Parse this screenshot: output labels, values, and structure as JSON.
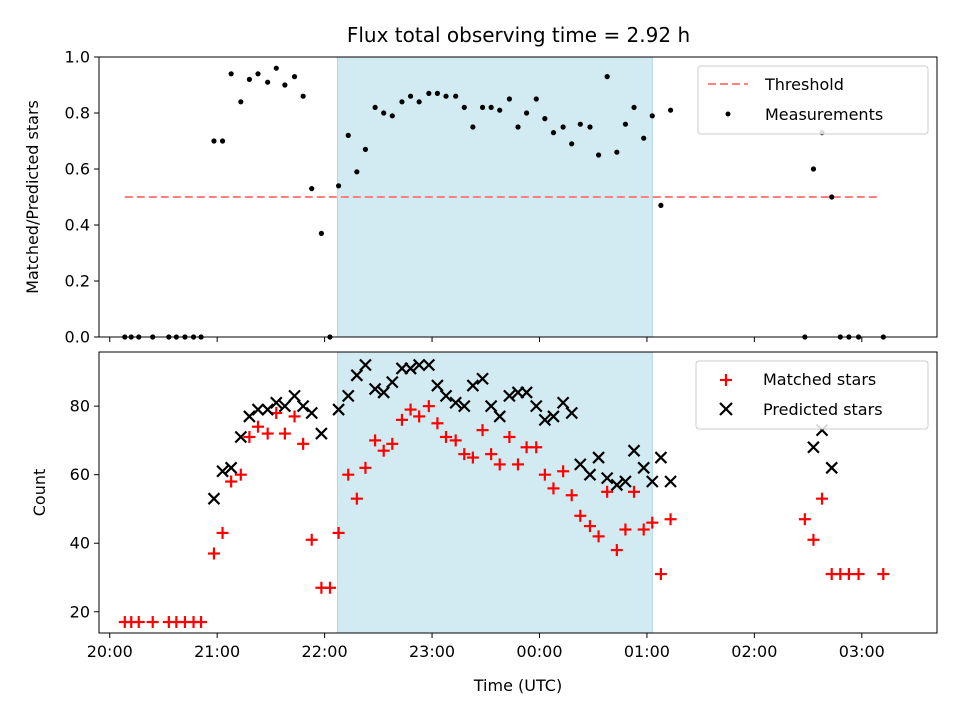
{
  "title": "Flux total observing time = 2.92 h",
  "colors": {
    "shade": "#add8e6",
    "threshold": "#ff8080",
    "measurement": "#000000",
    "matched": "#ff0000",
    "predicted": "#000000"
  },
  "chart_data": [
    {
      "type": "scatter",
      "panel": "top",
      "ylabel": "Matched/Predicted stars",
      "xlabel": "",
      "x_unit": "hours since 20:00 UTC on the shared time axis",
      "xlim": [
        -0.1,
        7.7
      ],
      "ylim": [
        0.0,
        1.0
      ],
      "yticks": [
        0.0,
        0.2,
        0.4,
        0.6,
        0.8,
        1.0
      ],
      "ytick_labels": [
        "0.0",
        "0.2",
        "0.4",
        "0.6",
        "0.8",
        "1.0"
      ],
      "grid": false,
      "legend": "top-right",
      "shaded_span": [
        2.12,
        5.05
      ],
      "threshold": {
        "name": "Threshold",
        "y": 0.5,
        "x_range": [
          0.14,
          7.17
        ]
      },
      "series": [
        {
          "name": "Measurements",
          "points": [
            [
              0.14,
              0.0
            ],
            [
              0.2,
              0.0
            ],
            [
              0.27,
              0.0
            ],
            [
              0.4,
              0.0
            ],
            [
              0.55,
              0.0
            ],
            [
              0.62,
              0.0
            ],
            [
              0.7,
              0.0
            ],
            [
              0.78,
              0.0
            ],
            [
              0.85,
              0.0
            ],
            [
              0.97,
              0.7
            ],
            [
              1.05,
              0.7
            ],
            [
              1.13,
              0.94
            ],
            [
              1.22,
              0.84
            ],
            [
              1.3,
              0.92
            ],
            [
              1.38,
              0.94
            ],
            [
              1.47,
              0.91
            ],
            [
              1.55,
              0.96
            ],
            [
              1.63,
              0.9
            ],
            [
              1.72,
              0.93
            ],
            [
              1.8,
              0.86
            ],
            [
              1.88,
              0.53
            ],
            [
              1.97,
              0.37
            ],
            [
              2.05,
              0.0
            ],
            [
              2.13,
              0.54
            ],
            [
              2.22,
              0.72
            ],
            [
              2.3,
              0.59
            ],
            [
              2.38,
              0.67
            ],
            [
              2.47,
              0.82
            ],
            [
              2.55,
              0.8
            ],
            [
              2.63,
              0.79
            ],
            [
              2.72,
              0.84
            ],
            [
              2.8,
              0.86
            ],
            [
              2.88,
              0.84
            ],
            [
              2.97,
              0.87
            ],
            [
              3.05,
              0.87
            ],
            [
              3.13,
              0.86
            ],
            [
              3.22,
              0.86
            ],
            [
              3.3,
              0.82
            ],
            [
              3.38,
              0.75
            ],
            [
              3.47,
              0.82
            ],
            [
              3.55,
              0.82
            ],
            [
              3.63,
              0.81
            ],
            [
              3.72,
              0.85
            ],
            [
              3.8,
              0.75
            ],
            [
              3.88,
              0.8
            ],
            [
              3.97,
              0.85
            ],
            [
              4.05,
              0.78
            ],
            [
              4.13,
              0.73
            ],
            [
              4.22,
              0.75
            ],
            [
              4.3,
              0.69
            ],
            [
              4.38,
              0.76
            ],
            [
              4.47,
              0.75
            ],
            [
              4.55,
              0.65
            ],
            [
              4.63,
              0.93
            ],
            [
              4.72,
              0.66
            ],
            [
              4.8,
              0.76
            ],
            [
              4.88,
              0.82
            ],
            [
              4.97,
              0.71
            ],
            [
              5.05,
              0.79
            ],
            [
              5.13,
              0.47
            ],
            [
              5.22,
              0.81
            ],
            [
              6.47,
              0.0
            ],
            [
              6.55,
              0.6
            ],
            [
              6.63,
              0.73
            ],
            [
              6.72,
              0.5
            ],
            [
              6.8,
              0.0
            ],
            [
              6.88,
              0.0
            ],
            [
              6.97,
              0.0
            ],
            [
              7.2,
              0.0
            ]
          ]
        }
      ]
    },
    {
      "type": "scatter",
      "panel": "bottom",
      "ylabel": "Count",
      "xlabel": "Time (UTC)",
      "x_unit": "hours since 20:00 UTC",
      "xlim": [
        -0.1,
        7.7
      ],
      "ylim": [
        13.8,
        95.8
      ],
      "xticks": [
        0,
        1,
        2,
        3,
        4,
        5,
        6,
        7
      ],
      "xtick_labels": [
        "20:00",
        "21:00",
        "22:00",
        "23:00",
        "00:00",
        "01:00",
        "02:00",
        "03:00"
      ],
      "yticks": [
        20,
        40,
        60,
        80
      ],
      "ytick_labels": [
        "20",
        "40",
        "60",
        "80"
      ],
      "grid": false,
      "legend": "top-right",
      "shaded_span": [
        2.12,
        5.05
      ],
      "series": [
        {
          "name": "Matched stars",
          "marker": "plus",
          "points": [
            [
              0.14,
              17
            ],
            [
              0.2,
              17
            ],
            [
              0.27,
              17
            ],
            [
              0.4,
              17
            ],
            [
              0.55,
              17
            ],
            [
              0.62,
              17
            ],
            [
              0.7,
              17
            ],
            [
              0.78,
              17
            ],
            [
              0.85,
              17
            ],
            [
              0.97,
              37
            ],
            [
              1.05,
              43
            ],
            [
              1.13,
              58
            ],
            [
              1.22,
              60
            ],
            [
              1.3,
              71
            ],
            [
              1.38,
              74
            ],
            [
              1.47,
              72
            ],
            [
              1.55,
              78
            ],
            [
              1.63,
              72
            ],
            [
              1.72,
              77
            ],
            [
              1.8,
              69
            ],
            [
              1.88,
              41
            ],
            [
              1.97,
              27
            ],
            [
              2.05,
              27
            ],
            [
              2.13,
              43
            ],
            [
              2.22,
              60
            ],
            [
              2.3,
              53
            ],
            [
              2.38,
              62
            ],
            [
              2.47,
              70
            ],
            [
              2.55,
              67
            ],
            [
              2.63,
              69
            ],
            [
              2.72,
              76
            ],
            [
              2.8,
              79
            ],
            [
              2.88,
              77
            ],
            [
              2.97,
              80
            ],
            [
              3.05,
              75
            ],
            [
              3.13,
              71
            ],
            [
              3.22,
              70
            ],
            [
              3.3,
              66
            ],
            [
              3.38,
              65
            ],
            [
              3.47,
              73
            ],
            [
              3.55,
              66
            ],
            [
              3.63,
              63
            ],
            [
              3.72,
              71
            ],
            [
              3.8,
              63
            ],
            [
              3.88,
              68
            ],
            [
              3.97,
              68
            ],
            [
              4.05,
              60
            ],
            [
              4.13,
              56
            ],
            [
              4.22,
              61
            ],
            [
              4.3,
              54
            ],
            [
              4.38,
              48
            ],
            [
              4.47,
              45
            ],
            [
              4.55,
              42
            ],
            [
              4.63,
              55
            ],
            [
              4.72,
              38
            ],
            [
              4.8,
              44
            ],
            [
              4.88,
              55
            ],
            [
              4.97,
              44
            ],
            [
              5.05,
              46
            ],
            [
              5.13,
              31
            ],
            [
              5.22,
              47
            ],
            [
              6.47,
              47
            ],
            [
              6.55,
              41
            ],
            [
              6.63,
              53
            ],
            [
              6.72,
              31
            ],
            [
              6.8,
              31
            ],
            [
              6.88,
              31
            ],
            [
              6.97,
              31
            ],
            [
              7.2,
              31
            ]
          ]
        },
        {
          "name": "Predicted stars",
          "marker": "x",
          "points": [
            [
              0.97,
              53
            ],
            [
              1.05,
              61
            ],
            [
              1.13,
              62
            ],
            [
              1.22,
              71
            ],
            [
              1.3,
              77
            ],
            [
              1.38,
              79
            ],
            [
              1.47,
              79
            ],
            [
              1.55,
              81
            ],
            [
              1.63,
              80
            ],
            [
              1.72,
              83
            ],
            [
              1.8,
              80
            ],
            [
              1.88,
              78
            ],
            [
              1.97,
              72
            ],
            [
              2.13,
              79
            ],
            [
              2.22,
              83
            ],
            [
              2.3,
              89
            ],
            [
              2.38,
              92
            ],
            [
              2.47,
              85
            ],
            [
              2.55,
              84
            ],
            [
              2.63,
              87
            ],
            [
              2.72,
              91
            ],
            [
              2.8,
              91
            ],
            [
              2.88,
              92
            ],
            [
              2.97,
              92
            ],
            [
              3.05,
              86
            ],
            [
              3.13,
              83
            ],
            [
              3.22,
              81
            ],
            [
              3.3,
              80
            ],
            [
              3.38,
              86
            ],
            [
              3.47,
              88
            ],
            [
              3.55,
              80
            ],
            [
              3.63,
              77
            ],
            [
              3.72,
              83
            ],
            [
              3.8,
              84
            ],
            [
              3.88,
              84
            ],
            [
              3.97,
              80
            ],
            [
              4.05,
              76
            ],
            [
              4.13,
              77
            ],
            [
              4.22,
              81
            ],
            [
              4.3,
              78
            ],
            [
              4.38,
              63
            ],
            [
              4.47,
              60
            ],
            [
              4.55,
              65
            ],
            [
              4.63,
              59
            ],
            [
              4.72,
              57
            ],
            [
              4.8,
              58
            ],
            [
              4.88,
              67
            ],
            [
              4.97,
              62
            ],
            [
              5.05,
              58
            ],
            [
              5.13,
              65
            ],
            [
              5.22,
              58
            ],
            [
              6.55,
              68
            ],
            [
              6.63,
              73
            ],
            [
              6.72,
              62
            ]
          ]
        }
      ]
    }
  ]
}
